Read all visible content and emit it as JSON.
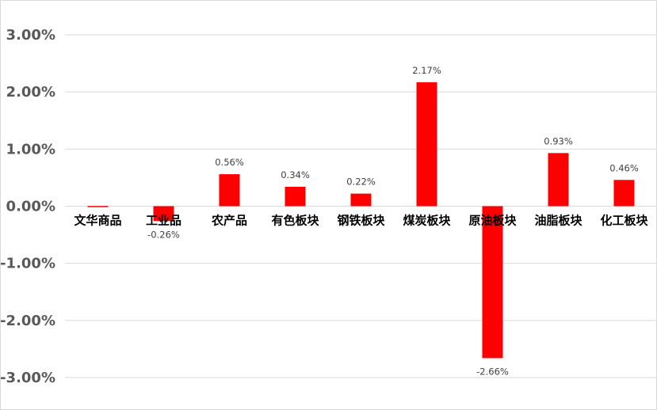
{
  "chart_data": {
    "type": "bar",
    "categories": [
      "文华商品",
      "工业品",
      "农产品",
      "有色板块",
      "钢铁板块",
      "煤炭板块",
      "原油板块",
      "油脂板块",
      "化工板块"
    ],
    "values": [
      -0.01,
      -0.26,
      0.56,
      0.34,
      0.22,
      2.17,
      -2.66,
      0.93,
      0.46
    ],
    "data_labels": [
      "",
      "-0.26%",
      "0.56%",
      "0.34%",
      "0.22%",
      "2.17%",
      "-2.66%",
      "0.93%",
      "0.46%"
    ],
    "ylim": [
      -3,
      3
    ],
    "yticks": [
      3,
      2,
      1,
      0,
      -1,
      -2,
      -3
    ],
    "ytick_labels": [
      "3.00%",
      "2.00%",
      "1.00%",
      "0.00%",
      "-1.00%",
      "-2.00%",
      "-3.00%"
    ],
    "bar_color": "#ff0000",
    "grid": true,
    "legend": "none",
    "title": "",
    "xlabel": "",
    "ylabel": ""
  }
}
